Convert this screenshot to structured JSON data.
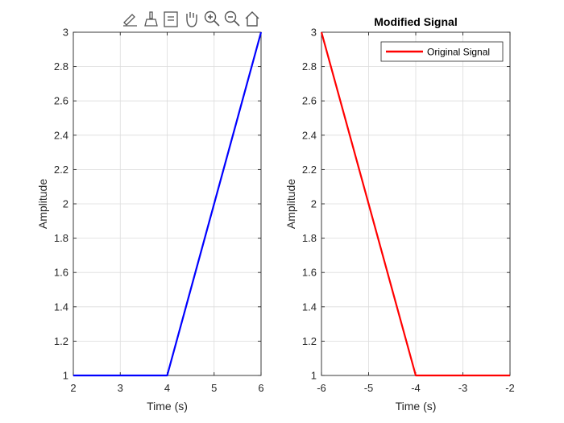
{
  "toolbar": {
    "icons": [
      "edit-brush-icon",
      "data-brush-icon",
      "datatip-icon",
      "pan-hand-icon",
      "zoom-in-icon",
      "zoom-out-icon",
      "home-icon"
    ]
  },
  "colors": {
    "axis": "#262626",
    "grid": "#dcdcdc"
  },
  "chart_data": [
    {
      "type": "line",
      "title": "",
      "xlabel": "Time (s)",
      "ylabel": "Amplitude",
      "xlim": [
        2,
        6
      ],
      "ylim": [
        1,
        3
      ],
      "xticks": [
        2,
        3,
        4,
        5,
        6
      ],
      "yticks": [
        1,
        1.2,
        1.4,
        1.6,
        1.8,
        2,
        2.2,
        2.4,
        2.6,
        2.8,
        3
      ],
      "grid": true,
      "series": [
        {
          "color": "#0000ff",
          "x": [
            2,
            4,
            6
          ],
          "y": [
            1,
            1,
            3
          ]
        }
      ]
    },
    {
      "type": "line",
      "title": "Modified Signal",
      "xlabel": "Time (s)",
      "ylabel": "Amplitude",
      "xlim": [
        -6,
        -2
      ],
      "ylim": [
        1,
        3
      ],
      "xticks": [
        -6,
        -5,
        -4,
        -3,
        -2
      ],
      "yticks": [
        1,
        1.2,
        1.4,
        1.6,
        1.8,
        2,
        2.2,
        2.4,
        2.6,
        2.8,
        3
      ],
      "grid": true,
      "legend_position": "top-right",
      "series": [
        {
          "name": "Original Signal",
          "color": "#ff0000",
          "x": [
            -6,
            -4,
            -2
          ],
          "y": [
            3,
            1,
            1
          ]
        }
      ]
    }
  ]
}
